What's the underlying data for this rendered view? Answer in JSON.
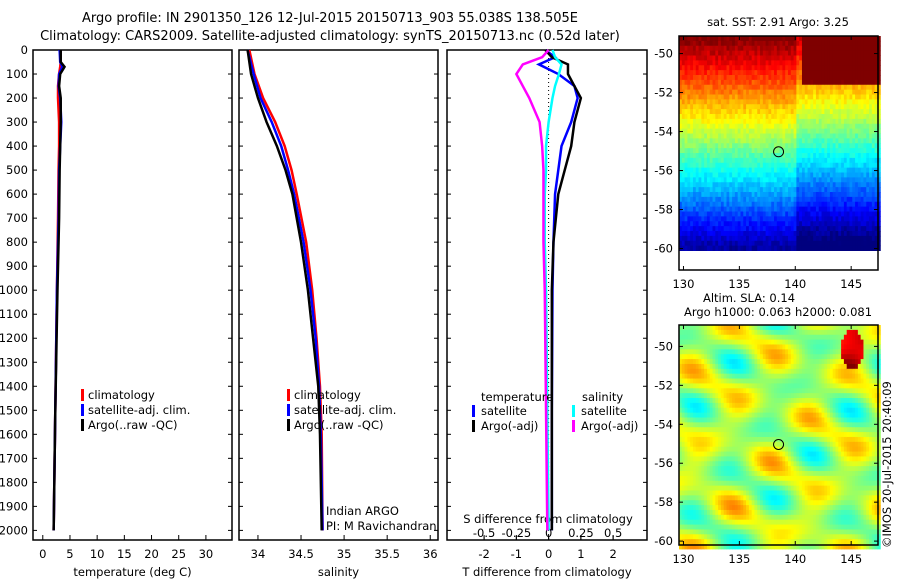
{
  "title_line1": "Argo profile: IN 2901350_126 12-Jul-2015 20150713_903 55.038S 138.505E",
  "title_line2": "Climatology: CARS2009. Satellite-adjusted climatology: synTS_20150713.nc (0.52d later)",
  "watermark": "©IMOS 20-Jul-2015 20:40:09",
  "colors": {
    "climatology": "#ff0000",
    "satellite": "#0000ff",
    "argo": "#000000",
    "sal_satellite": "#00ffff",
    "sal_argo": "#ff00ff"
  },
  "chart_data": [
    {
      "type": "line",
      "name": "temperature",
      "xlabel": "temperature (deg C)",
      "ylabel": "",
      "xlim": [
        -1.8,
        34.8
      ],
      "ylim": [
        2040,
        0
      ],
      "xticks": [
        0,
        5,
        10,
        15,
        20,
        25,
        30
      ],
      "yticks": [
        0,
        100,
        200,
        300,
        400,
        500,
        600,
        700,
        800,
        900,
        1000,
        1100,
        1200,
        1300,
        1400,
        1500,
        1600,
        1700,
        1800,
        1900,
        2000
      ],
      "legend": [
        "climatology",
        "satellite-adj. clim.",
        "Argo(..raw -QC)"
      ],
      "depth": [
        0,
        50,
        70,
        100,
        150,
        200,
        300,
        400,
        500,
        700,
        1000,
        1500,
        2000
      ],
      "series": [
        {
          "name": "climatology",
          "color": "#ff0000",
          "values": [
            3.3,
            3.3,
            3.2,
            3.0,
            2.8,
            2.8,
            3.0,
            3.0,
            2.9,
            2.8,
            2.6,
            2.3,
            2.0
          ]
        },
        {
          "name": "satellite-adj. clim.",
          "color": "#0000ff",
          "values": [
            3.1,
            3.2,
            3.6,
            3.0,
            2.9,
            3.2,
            3.4,
            3.2,
            3.0,
            2.9,
            2.6,
            2.3,
            2.0
          ]
        },
        {
          "name": "Argo(..raw -QC)",
          "color": "#000000",
          "values": [
            3.3,
            3.3,
            4.0,
            3.2,
            3.0,
            3.3,
            3.3,
            3.2,
            3.1,
            3.0,
            2.7,
            2.3,
            2.0
          ]
        }
      ]
    },
    {
      "type": "line",
      "name": "salinity",
      "xlabel": "salinity",
      "xlim": [
        33.78,
        36.09
      ],
      "ylim": [
        2040,
        0
      ],
      "xticks": [
        34,
        34.5,
        35,
        35.5,
        36
      ],
      "xticklabels": [
        "34",
        "34.5",
        "35",
        "35.5",
        "36"
      ],
      "legend": [
        "climatology",
        "satellite-adj. clim.",
        "Argo(..raw -QC)"
      ],
      "annotation": [
        "Indian ARGO",
        "PI: M Ravichandran"
      ],
      "depth": [
        0,
        100,
        200,
        300,
        400,
        500,
        600,
        800,
        1000,
        1200,
        1400,
        1600,
        2000
      ],
      "series": [
        {
          "name": "climatology",
          "color": "#ff0000",
          "values": [
            33.9,
            33.96,
            34.06,
            34.2,
            34.31,
            34.39,
            34.45,
            34.56,
            34.63,
            34.68,
            34.72,
            34.74,
            34.75
          ]
        },
        {
          "name": "satellite-adj. clim.",
          "color": "#0000ff",
          "values": [
            33.88,
            33.95,
            34.03,
            34.16,
            34.27,
            34.35,
            34.42,
            34.53,
            34.61,
            34.67,
            34.71,
            34.73,
            34.75
          ]
        },
        {
          "name": "Argo(..raw -QC)",
          "color": "#000000",
          "values": [
            33.88,
            33.92,
            34.0,
            34.1,
            34.22,
            34.32,
            34.4,
            34.5,
            34.58,
            34.64,
            34.7,
            34.72,
            34.74
          ]
        }
      ]
    },
    {
      "type": "line",
      "name": "difference",
      "xlabel": "T difference from climatology",
      "x2label": "S difference from climatology",
      "xlim": [
        -3.15,
        3.05
      ],
      "ylim": [
        2040,
        0
      ],
      "xticks": [
        -2,
        -1,
        0,
        1,
        2
      ],
      "x2ticks": [
        -0.5,
        -0.25,
        0,
        0.25,
        0.5
      ],
      "x2ticklabels": [
        "-0.5",
        "-0.25",
        "0",
        "0.25",
        "0.5"
      ],
      "legend": {
        "temperature_title": "temperature",
        "salinity_title": "salinity",
        "t_sat": "satellite",
        "t_argo": "Argo(-adj)",
        "s_sat": "satellite",
        "s_argo": "Argo(-adj)"
      },
      "depth": [
        0,
        30,
        60,
        100,
        150,
        200,
        300,
        400,
        500,
        600,
        800,
        1000,
        1500,
        2000
      ],
      "series": [
        {
          "name": "T satellite",
          "color": "#0000ff",
          "unit": "T",
          "values": [
            -0.1,
            0.2,
            -0.3,
            0.3,
            0.8,
            0.9,
            0.7,
            0.4,
            0.3,
            0.2,
            0.15,
            0.12,
            0.1,
            0.1
          ]
        },
        {
          "name": "T Argo(-adj)",
          "color": "#000000",
          "unit": "T",
          "values": [
            -0.1,
            0.1,
            0.6,
            0.6,
            0.8,
            1.0,
            0.8,
            0.7,
            0.5,
            0.3,
            0.15,
            0.1,
            0.1,
            0.1
          ]
        },
        {
          "name": "S satellite",
          "color": "#00ffff",
          "unit": "S",
          "values": [
            0.03,
            0.05,
            0.1,
            0.08,
            0.05,
            0.03,
            0.0,
            -0.02,
            -0.02,
            -0.03,
            -0.03,
            -0.02,
            -0.01,
            0.0
          ]
        },
        {
          "name": "S Argo(-adj)",
          "color": "#ff00ff",
          "unit": "S",
          "values": [
            0.0,
            -0.05,
            -0.2,
            -0.25,
            -0.2,
            -0.15,
            -0.07,
            -0.05,
            -0.04,
            -0.04,
            -0.04,
            -0.03,
            -0.02,
            -0.01
          ]
        }
      ]
    },
    {
      "type": "heatmap",
      "name": "sst_map",
      "title": "sat. SST: 2.91  Argo: 3.25",
      "xlim": [
        129.6,
        147.4
      ],
      "ylim": [
        -61.1,
        -49.1
      ],
      "xticks": [
        130,
        135,
        140,
        145
      ],
      "yticks": [
        -50,
        -52,
        -54,
        -56,
        -58,
        -60
      ],
      "marker": {
        "lon": 138.505,
        "lat": -55.038
      }
    },
    {
      "type": "heatmap",
      "name": "sla_map",
      "title": [
        "Altim. SLA: 0.14",
        "Argo h1000: 0.063 h2000: 0.081"
      ],
      "xlim": [
        129.6,
        147.4
      ],
      "ylim": [
        -60.2,
        -48.9
      ],
      "xticks": [
        130,
        135,
        140,
        145
      ],
      "yticks": [
        -50,
        -52,
        -54,
        -56,
        -58,
        -60
      ],
      "marker": {
        "lon": 138.505,
        "lat": -55.038
      }
    }
  ]
}
